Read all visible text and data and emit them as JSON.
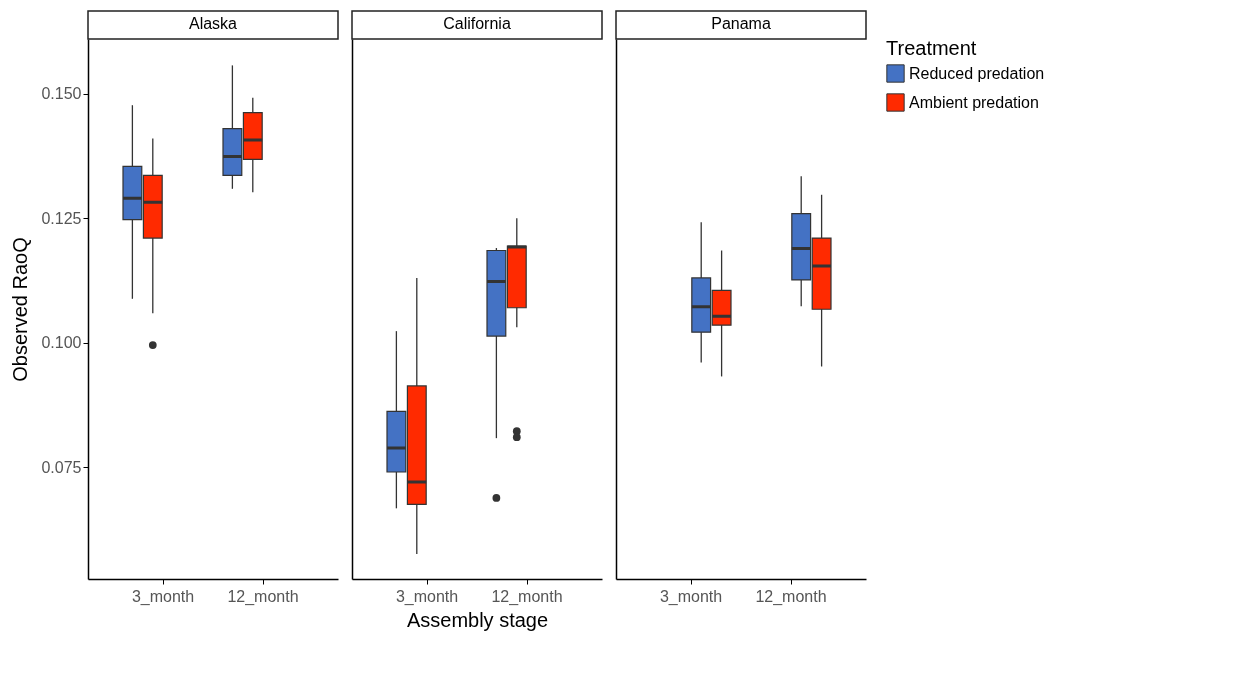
{
  "chart_data": [
    {
      "type": "box",
      "title": "Alaska",
      "ylabel": "Observed RaoQ",
      "categories": [
        "3_month",
        "12_month"
      ],
      "ylim": [
        0.0525,
        0.161
      ],
      "yticks": [
        {
          "value": 0.075,
          "label": "0.075"
        },
        {
          "value": 0.1,
          "label": "0.100"
        },
        {
          "value": 0.125,
          "label": "0.125"
        },
        {
          "value": 0.15,
          "label": "0.150"
        }
      ],
      "marker": "circle",
      "series": [
        {
          "color": "#4472c4",
          "boxes": [
            {
              "low": 0.1088,
              "q1": 0.1247,
              "median": 0.129,
              "q3": 0.1354,
              "high": 0.1477
            },
            {
              "low": 0.1309,
              "q1": 0.1336,
              "median": 0.1374,
              "q3": 0.143,
              "high": 0.1557
            }
          ]
        },
        {
          "color": "#ff2a00",
          "boxes": [
            {
              "low": 0.1059,
              "q1": 0.121,
              "median": 0.1282,
              "q3": 0.1336,
              "high": 0.141,
              "outliers": [
                0.0995
              ]
            },
            {
              "low": 0.1302,
              "q1": 0.1368,
              "median": 0.1407,
              "q3": 0.1462,
              "high": 0.1492
            }
          ]
        }
      ]
    },
    {
      "type": "box",
      "title": "California",
      "xlabel": "Assembly stage",
      "categories": [
        "3_month",
        "12_month"
      ],
      "ylim": [
        0.0525,
        0.161
      ],
      "tick_labels": "x",
      "marker": "circle",
      "series": [
        {
          "color": "#4472c4",
          "boxes": [
            {
              "low": 0.0667,
              "q1": 0.074,
              "median": 0.0788,
              "q3": 0.0862,
              "high": 0.1023
            },
            {
              "low": 0.0808,
              "q1": 0.1013,
              "median": 0.1123,
              "q3": 0.1185,
              "high": 0.119,
              "outliers": [
                0.0688
              ]
            }
          ]
        },
        {
          "color": "#ff2a00",
          "boxes": [
            {
              "low": 0.0575,
              "q1": 0.0675,
              "median": 0.072,
              "q3": 0.0913,
              "high": 0.113
            },
            {
              "low": 0.1031,
              "q1": 0.107,
              "median": 0.1192,
              "q3": 0.1194,
              "high": 0.125,
              "outliers": [
                0.0822,
                0.081
              ]
            }
          ]
        }
      ]
    },
    {
      "type": "box",
      "title": "Panama",
      "categories": [
        "3_month",
        "12_month"
      ],
      "ylim": [
        0.0525,
        0.161
      ],
      "tick_labels": "x",
      "marker": "circle",
      "legend": "right",
      "legend_title": "Treatment",
      "series": [
        {
          "name": "Reduced predation",
          "color": "#4472c4",
          "boxes": [
            {
              "low": 0.096,
              "q1": 0.1021,
              "median": 0.1072,
              "q3": 0.113,
              "high": 0.1242
            },
            {
              "low": 0.1073,
              "q1": 0.1126,
              "median": 0.1189,
              "q3": 0.1259,
              "high": 0.1334
            }
          ]
        },
        {
          "name": "Ambient predation",
          "color": "#ff2a00",
          "boxes": [
            {
              "low": 0.0932,
              "q1": 0.1035,
              "median": 0.1053,
              "q3": 0.1105,
              "high": 0.1185
            },
            {
              "low": 0.0952,
              "q1": 0.1067,
              "median": 0.1154,
              "q3": 0.121,
              "high": 0.1297
            }
          ]
        }
      ]
    }
  ]
}
